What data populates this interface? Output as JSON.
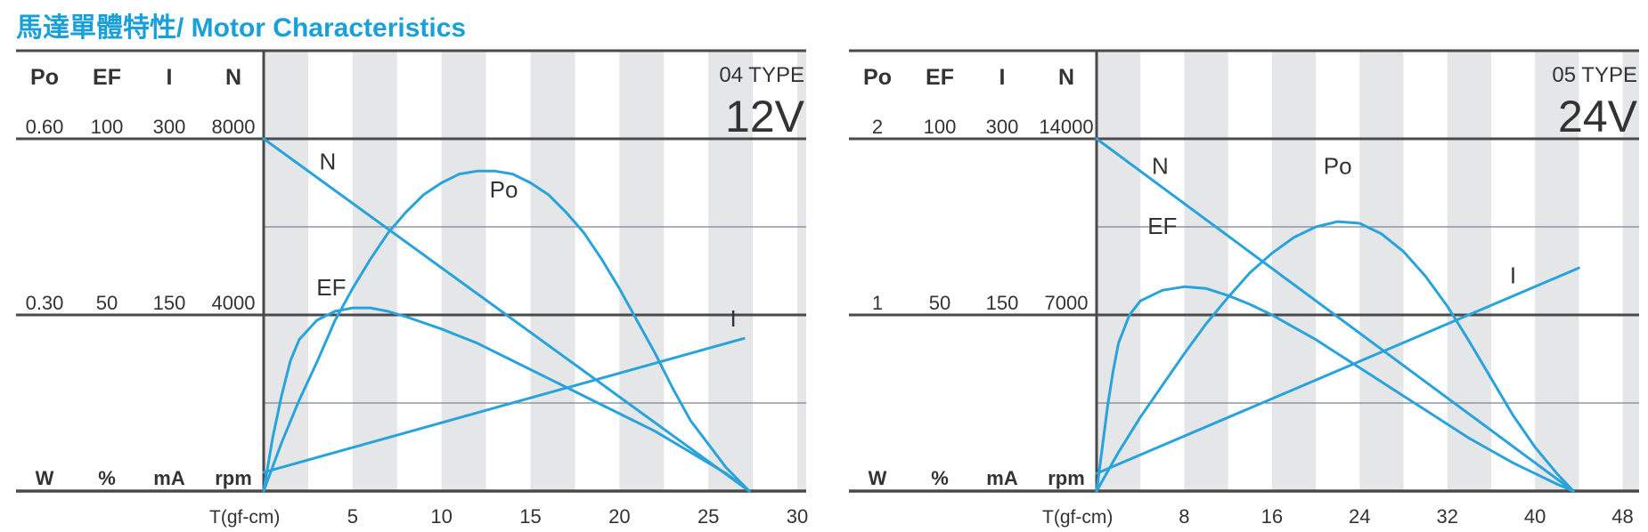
{
  "page_title": "馬達單體特性/ Motor Characteristics",
  "colors": {
    "accent": "#1aa0d8",
    "curve": "#29a3dc",
    "stripe": "#e5e6e8",
    "frame": "#4a4a4a"
  },
  "chart_data": [
    {
      "type": "line",
      "type_label": "04 TYPE",
      "voltage": "12V",
      "xlabel": "T(gf-cm)",
      "xticks": [
        5,
        10,
        15,
        20,
        25,
        30
      ],
      "xlim": [
        0,
        30.5
      ],
      "axis_headers": [
        "Po",
        "EF",
        "I",
        "N"
      ],
      "axis_units": [
        "W",
        "%",
        "mA",
        "rpm"
      ],
      "axis_max_labels": [
        "0.60",
        "100",
        "300",
        "8000"
      ],
      "axis_mid_labels": [
        "0.30",
        "50",
        "150",
        "4000"
      ],
      "axis_max_values": [
        0.6,
        100,
        300,
        8000
      ],
      "grid": true,
      "series": [
        {
          "name": "N",
          "axis": 3,
          "label_at": [
            3.6,
            7300
          ],
          "points": [
            [
              0,
              8000
            ],
            [
              27.3,
              0
            ]
          ]
        },
        {
          "name": "Po",
          "axis": 0,
          "label_at": [
            13.5,
            0.5
          ],
          "points": [
            [
              0,
              0
            ],
            [
              1,
              0.082
            ],
            [
              2,
              0.155
            ],
            [
              3,
              0.22
            ],
            [
              4,
              0.29
            ],
            [
              5,
              0.345
            ],
            [
              6,
              0.395
            ],
            [
              7,
              0.44
            ],
            [
              8,
              0.475
            ],
            [
              9,
              0.505
            ],
            [
              10,
              0.525
            ],
            [
              11,
              0.54
            ],
            [
              12,
              0.545
            ],
            [
              13,
              0.545
            ],
            [
              14,
              0.54
            ],
            [
              15,
              0.525
            ],
            [
              16,
              0.505
            ],
            [
              17,
              0.475
            ],
            [
              18,
              0.44
            ],
            [
              19,
              0.395
            ],
            [
              20,
              0.345
            ],
            [
              21,
              0.29
            ],
            [
              22,
              0.235
            ],
            [
              23,
              0.175
            ],
            [
              24,
              0.12
            ],
            [
              25,
              0.08
            ],
            [
              26,
              0.04
            ],
            [
              27.3,
              0
            ]
          ]
        },
        {
          "name": "EF",
          "axis": 1,
          "label_at": [
            3.8,
            55.5
          ],
          "points": [
            [
              0,
              0
            ],
            [
              0.5,
              15
            ],
            [
              1,
              27
            ],
            [
              1.5,
              37
            ],
            [
              2,
              43
            ],
            [
              3,
              48.5
            ],
            [
              4,
              51
            ],
            [
              5,
              52
            ],
            [
              6,
              52
            ],
            [
              7,
              51
            ],
            [
              8,
              49.5
            ],
            [
              10,
              46
            ],
            [
              12,
              42
            ],
            [
              14,
              37
            ],
            [
              16,
              32
            ],
            [
              18,
              27
            ],
            [
              20,
              22
            ],
            [
              22,
              17
            ],
            [
              24,
              11
            ],
            [
              26,
              5
            ],
            [
              27.3,
              0
            ]
          ]
        },
        {
          "name": "I",
          "axis": 2,
          "label_at": [
            26.4,
            140
          ],
          "points": [
            [
              0,
              16
            ],
            [
              27,
              130
            ]
          ]
        }
      ]
    },
    {
      "type": "line",
      "type_label": "05 TYPE",
      "voltage": "24V",
      "xlabel": "T(gf-cm)",
      "xticks": [
        8,
        16,
        24,
        32,
        40,
        48
      ],
      "xlim": [
        0,
        49.5
      ],
      "axis_headers": [
        "Po",
        "EF",
        "I",
        "N"
      ],
      "axis_units": [
        "W",
        "%",
        "mA",
        "rpm"
      ],
      "axis_max_labels": [
        "2",
        "100",
        "300",
        "14000"
      ],
      "axis_mid_labels": [
        "1",
        "50",
        "150",
        "7000"
      ],
      "axis_max_values": [
        2,
        100,
        300,
        14000
      ],
      "grid": true,
      "series": [
        {
          "name": "N",
          "axis": 3,
          "label_at": [
            5.8,
            12600
          ],
          "points": [
            [
              0,
              14000
            ],
            [
              43.5,
              0
            ]
          ]
        },
        {
          "name": "Po",
          "axis": 0,
          "label_at": [
            22,
            1.8
          ],
          "points": [
            [
              0,
              0
            ],
            [
              2,
              0.22
            ],
            [
              4,
              0.42
            ],
            [
              6,
              0.6
            ],
            [
              8,
              0.78
            ],
            [
              10,
              0.95
            ],
            [
              12,
              1.1
            ],
            [
              14,
              1.24
            ],
            [
              16,
              1.35
            ],
            [
              18,
              1.44
            ],
            [
              20,
              1.5
            ],
            [
              22,
              1.53
            ],
            [
              24,
              1.52
            ],
            [
              26,
              1.46
            ],
            [
              28,
              1.36
            ],
            [
              30,
              1.22
            ],
            [
              32,
              1.05
            ],
            [
              34,
              0.85
            ],
            [
              36,
              0.64
            ],
            [
              38,
              0.43
            ],
            [
              40,
              0.25
            ],
            [
              42,
              0.1
            ],
            [
              43.5,
              0
            ]
          ]
        },
        {
          "name": "EF",
          "axis": 1,
          "label_at": [
            6,
            73
          ],
          "points": [
            [
              0,
              0
            ],
            [
              0.5,
              12
            ],
            [
              1,
              24
            ],
            [
              1.5,
              34
            ],
            [
              2,
              42
            ],
            [
              3,
              50
            ],
            [
              4,
              54
            ],
            [
              6,
              57
            ],
            [
              8,
              58
            ],
            [
              10,
              57.5
            ],
            [
              12,
              55.5
            ],
            [
              14,
              53
            ],
            [
              16,
              50
            ],
            [
              18,
              46.5
            ],
            [
              20,
              43
            ],
            [
              22,
              39
            ],
            [
              24,
              35
            ],
            [
              26,
              31
            ],
            [
              28,
              27
            ],
            [
              30,
              23
            ],
            [
              32,
              19
            ],
            [
              34,
              15
            ],
            [
              36,
              11.5
            ],
            [
              38,
              8
            ],
            [
              40,
              5
            ],
            [
              42,
              2
            ],
            [
              43.5,
              0
            ]
          ]
        },
        {
          "name": "I",
          "axis": 2,
          "label_at": [
            38,
            177
          ],
          "points": [
            [
              0,
              15
            ],
            [
              44,
              190
            ]
          ]
        }
      ]
    }
  ]
}
